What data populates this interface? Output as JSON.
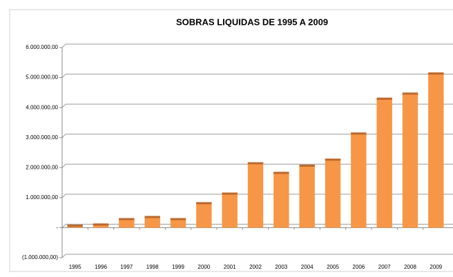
{
  "chart_data": {
    "type": "bar",
    "title": "SOBRAS LIQUIDAS DE 1995 A 2009",
    "categories": [
      "1995",
      "1996",
      "1997",
      "1998",
      "1999",
      "2000",
      "2001",
      "2002",
      "2003",
      "2004",
      "2005",
      "2006",
      "2007",
      "2008",
      "2009"
    ],
    "values": [
      100000,
      140000,
      320000,
      390000,
      320000,
      850000,
      1170000,
      2180000,
      1860000,
      2100000,
      2300000,
      3170000,
      4330000,
      4500000,
      5170000
    ],
    "color": "#f79646",
    "ylim": [
      -1000000,
      6000000
    ],
    "yticks": [
      {
        "value": -1000000,
        "label": "(1.000.000,00)"
      },
      {
        "value": 0,
        "label": "-"
      },
      {
        "value": 1000000,
        "label": "1.000.000,00"
      },
      {
        "value": 2000000,
        "label": "2.000.000,00"
      },
      {
        "value": 3000000,
        "label": "3.000.000,00"
      },
      {
        "value": 4000000,
        "label": "4.000.000,00"
      },
      {
        "value": 5000000,
        "label": "5.000.000,00"
      },
      {
        "value": 6000000,
        "label": "6.000.000,00"
      }
    ],
    "grid": true
  }
}
